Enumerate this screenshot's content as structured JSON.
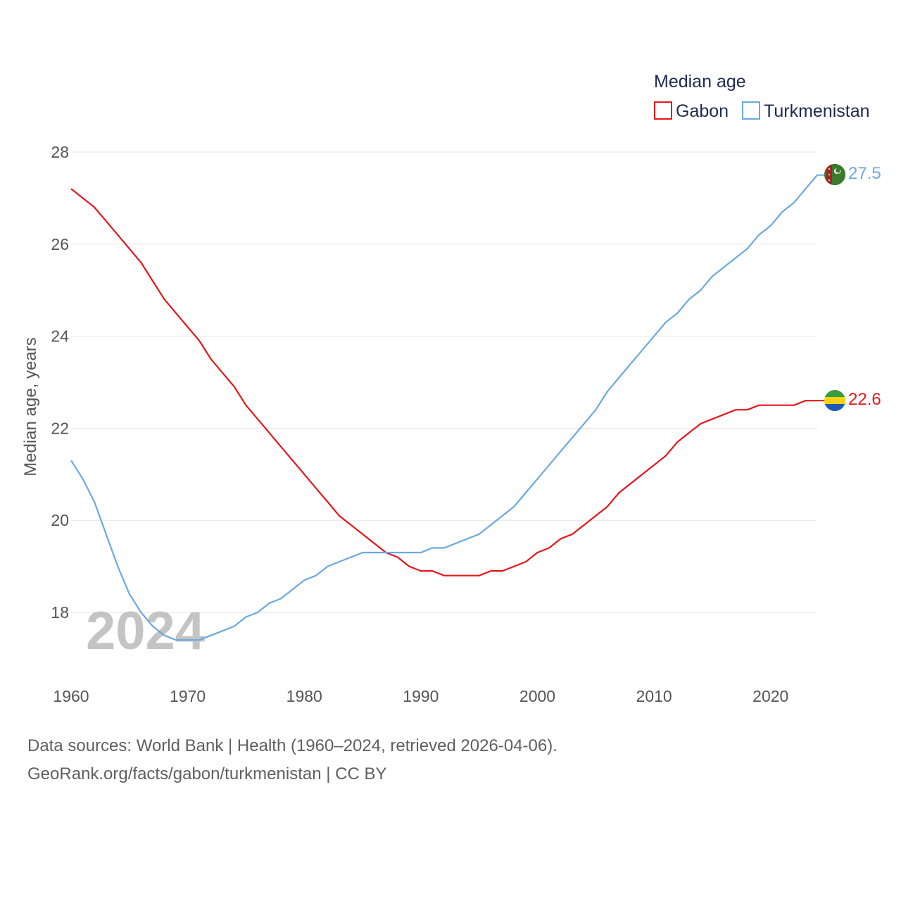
{
  "chart_data": {
    "type": "line",
    "legend": {
      "title": "Median age",
      "position": "top-right"
    },
    "ylabel": "Median age, years",
    "xlabel": "",
    "ylim": [
      17,
      28
    ],
    "xlim": [
      1960,
      2024
    ],
    "yticks": [
      18,
      20,
      22,
      24,
      26,
      28
    ],
    "ytick_labels": [
      "18",
      "20",
      "22",
      "24",
      "26",
      "28"
    ],
    "xticks": [
      1960,
      1970,
      1980,
      1990,
      2000,
      2010,
      2020
    ],
    "xtick_labels": [
      "1960",
      "1970",
      "1980",
      "1990",
      "2000",
      "2010",
      "2020"
    ],
    "grid": true,
    "year_label": "2024",
    "x": [
      1960,
      1961,
      1962,
      1963,
      1964,
      1965,
      1966,
      1967,
      1968,
      1969,
      1970,
      1971,
      1972,
      1973,
      1974,
      1975,
      1976,
      1977,
      1978,
      1979,
      1980,
      1981,
      1982,
      1983,
      1984,
      1985,
      1986,
      1987,
      1988,
      1989,
      1990,
      1991,
      1992,
      1993,
      1994,
      1995,
      1996,
      1997,
      1998,
      1999,
      2000,
      2001,
      2002,
      2003,
      2004,
      2005,
      2006,
      2007,
      2008,
      2009,
      2010,
      2011,
      2012,
      2013,
      2014,
      2015,
      2016,
      2017,
      2018,
      2019,
      2020,
      2021,
      2022,
      2023,
      2024
    ],
    "series": [
      {
        "name": "Gabon",
        "color": "#e8151b",
        "end_label": "22.6",
        "flag": "gabon-flag-icon",
        "values": [
          27.2,
          27.0,
          26.8,
          26.5,
          26.2,
          25.9,
          25.6,
          25.2,
          24.8,
          24.5,
          24.2,
          23.9,
          23.5,
          23.2,
          22.9,
          22.5,
          22.2,
          21.9,
          21.6,
          21.3,
          21.0,
          20.7,
          20.4,
          20.1,
          19.9,
          19.7,
          19.5,
          19.3,
          19.2,
          19.0,
          18.9,
          18.9,
          18.8,
          18.8,
          18.8,
          18.8,
          18.9,
          18.9,
          19.0,
          19.1,
          19.3,
          19.4,
          19.6,
          19.7,
          19.9,
          20.1,
          20.3,
          20.6,
          20.8,
          21.0,
          21.2,
          21.4,
          21.7,
          21.9,
          22.1,
          22.2,
          22.3,
          22.4,
          22.4,
          22.5,
          22.5,
          22.5,
          22.5,
          22.6,
          22.6
        ]
      },
      {
        "name": "Turkmenistan",
        "color": "#6aa9e3",
        "end_label": "27.5",
        "flag": "turkmenistan-flag-icon",
        "values": [
          21.3,
          20.9,
          20.4,
          19.7,
          19.0,
          18.4,
          18.0,
          17.7,
          17.5,
          17.4,
          17.4,
          17.4,
          17.5,
          17.6,
          17.7,
          17.9,
          18.0,
          18.2,
          18.3,
          18.5,
          18.7,
          18.8,
          19.0,
          19.1,
          19.2,
          19.3,
          19.3,
          19.3,
          19.3,
          19.3,
          19.3,
          19.4,
          19.4,
          19.5,
          19.6,
          19.7,
          19.9,
          20.1,
          20.3,
          20.6,
          20.9,
          21.2,
          21.5,
          21.8,
          22.1,
          22.4,
          22.8,
          23.1,
          23.4,
          23.7,
          24.0,
          24.3,
          24.5,
          24.8,
          25.0,
          25.3,
          25.5,
          25.7,
          25.9,
          26.2,
          26.4,
          26.7,
          26.9,
          27.2,
          27.5
        ]
      }
    ]
  },
  "footer": {
    "line1": "Data sources: World Bank | Health (1960–2024, retrieved 2026-04-06).",
    "line2": "GeoRank.org/facts/gabon/turkmenistan | CC BY"
  }
}
